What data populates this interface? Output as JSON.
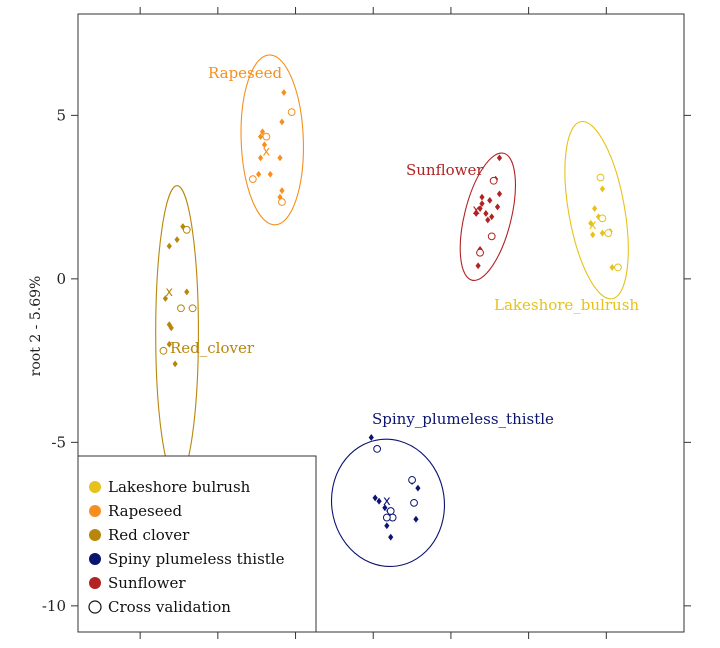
{
  "chart_data": {
    "type": "scatter",
    "ylabel": "root 2 - 5.69%",
    "xlabel": "",
    "xlim": [
      -7.6,
      8.0
    ],
    "ylim": [
      -10.8,
      8.1
    ],
    "yticks": [
      5,
      0,
      -5,
      -10
    ],
    "yticklabels": [
      "5",
      "0",
      "-5",
      "-10"
    ],
    "xticks": [
      -6,
      -4,
      -2,
      0,
      2,
      4,
      6
    ],
    "grid": false,
    "legend_position": "bottom-left",
    "legend": [
      {
        "label": "Lakeshore bulrush",
        "color": "#E6C21A",
        "marker": "filled-circle"
      },
      {
        "label": "Rapeseed",
        "color": "#F5901E",
        "marker": "filled-circle"
      },
      {
        "label": "Red clover",
        "color": "#B8860B",
        "marker": "filled-circle"
      },
      {
        "label": "Spiny plumeless thistle",
        "color": "#0C1472",
        "marker": "filled-circle"
      },
      {
        "label": "Sunflower",
        "color": "#B22222",
        "marker": "filled-circle"
      },
      {
        "label": "Cross validation",
        "color": "#111111",
        "marker": "open-circle"
      }
    ],
    "groups": [
      {
        "name": "Rapeseed",
        "label": "Rapeseed",
        "color": "#F5901E",
        "centroid": [
          -2.75,
          3.9
        ],
        "ellipse": {
          "cx": -2.6,
          "cy": 4.25,
          "rx": 0.8,
          "ry": 2.6,
          "rotate": -2
        },
        "points": [
          [
            -2.3,
            5.7
          ],
          [
            -2.35,
            4.8
          ],
          [
            -2.9,
            4.35
          ],
          [
            -2.85,
            4.5
          ],
          [
            -2.8,
            4.1
          ],
          [
            -2.9,
            3.7
          ],
          [
            -2.65,
            3.2
          ],
          [
            -2.4,
            3.7
          ],
          [
            -2.95,
            3.2
          ],
          [
            -2.35,
            2.7
          ],
          [
            -2.4,
            2.5
          ]
        ],
        "cv_points": [
          [
            -2.1,
            5.1
          ],
          [
            -2.75,
            4.35
          ],
          [
            -3.1,
            3.05
          ],
          [
            -2.35,
            2.35
          ]
        ]
      },
      {
        "name": "Red clover",
        "label": "Red_clover",
        "color": "#B8860B",
        "centroid": [
          -5.25,
          -0.4
        ],
        "ellipse": {
          "cx": -5.05,
          "cy": -1.65,
          "rx": 0.55,
          "ry": 4.5,
          "rotate": 0
        },
        "points": [
          [
            -4.9,
            1.6
          ],
          [
            -5.05,
            1.2
          ],
          [
            -5.25,
            1.0
          ],
          [
            -4.8,
            -0.4
          ],
          [
            -5.35,
            -0.6
          ],
          [
            -5.25,
            -1.4
          ],
          [
            -5.2,
            -1.5
          ],
          [
            -5.25,
            -2.0
          ],
          [
            -5.1,
            -2.6
          ]
        ],
        "cv_points": [
          [
            -4.8,
            1.5
          ],
          [
            -4.95,
            -0.9
          ],
          [
            -4.65,
            -0.9
          ],
          [
            -5.4,
            -2.2
          ]
        ]
      },
      {
        "name": "Sunflower",
        "label": "Sunflower",
        "color": "#B22222",
        "centroid": [
          2.65,
          2.1
        ],
        "ellipse": {
          "cx": 2.95,
          "cy": 1.9,
          "rx": 0.6,
          "ry": 2.0,
          "rotate": 14
        },
        "points": [
          [
            3.25,
            3.7
          ],
          [
            3.15,
            3.05
          ],
          [
            2.8,
            2.5
          ],
          [
            3.0,
            2.4
          ],
          [
            2.75,
            2.15
          ],
          [
            2.8,
            2.3
          ],
          [
            2.65,
            2.0
          ],
          [
            2.9,
            2.0
          ],
          [
            3.2,
            2.2
          ],
          [
            3.05,
            1.9
          ],
          [
            2.95,
            1.8
          ],
          [
            3.25,
            2.6
          ],
          [
            2.75,
            0.9
          ],
          [
            2.7,
            0.4
          ]
        ],
        "cv_points": [
          [
            3.1,
            3.0
          ],
          [
            3.05,
            1.3
          ],
          [
            2.75,
            0.8
          ]
        ]
      },
      {
        "name": "Lakeshore bulrush",
        "label": "Lakeshore_bulrush",
        "color": "#E6C21A",
        "centroid": [
          5.65,
          1.65
        ],
        "ellipse": {
          "cx": 5.75,
          "cy": 2.1,
          "rx": 0.72,
          "ry": 2.75,
          "rotate": -10
        },
        "points": [
          [
            5.9,
            2.75
          ],
          [
            5.7,
            2.15
          ],
          [
            5.8,
            1.9
          ],
          [
            5.6,
            1.7
          ],
          [
            5.9,
            1.4
          ],
          [
            6.1,
            1.45
          ],
          [
            5.65,
            1.35
          ],
          [
            6.15,
            0.35
          ]
        ],
        "cv_points": [
          [
            5.85,
            3.1
          ],
          [
            5.9,
            1.85
          ],
          [
            6.05,
            1.4
          ],
          [
            6.3,
            0.35
          ]
        ]
      },
      {
        "name": "Spiny plumeless thistle",
        "label": "Spiny_plumeless_thistle",
        "color": "#0C1472",
        "centroid": [
          0.35,
          -6.8
        ],
        "ellipse": {
          "cx": 0.38,
          "cy": -6.85,
          "rx": 1.45,
          "ry": 1.95,
          "rotate": -8
        },
        "points": [
          [
            -0.05,
            -4.85
          ],
          [
            0.05,
            -6.7
          ],
          [
            0.15,
            -6.8
          ],
          [
            0.3,
            -7.0
          ],
          [
            0.4,
            -7.1
          ],
          [
            0.35,
            -7.55
          ],
          [
            1.0,
            -6.2
          ],
          [
            1.15,
            -6.4
          ],
          [
            0.45,
            -7.9
          ],
          [
            1.1,
            -7.35
          ]
        ],
        "cv_points": [
          [
            0.1,
            -5.2
          ],
          [
            1.0,
            -6.15
          ],
          [
            1.05,
            -6.85
          ],
          [
            0.5,
            -7.3
          ],
          [
            0.35,
            -7.3
          ],
          [
            0.45,
            -7.1
          ]
        ]
      }
    ]
  }
}
